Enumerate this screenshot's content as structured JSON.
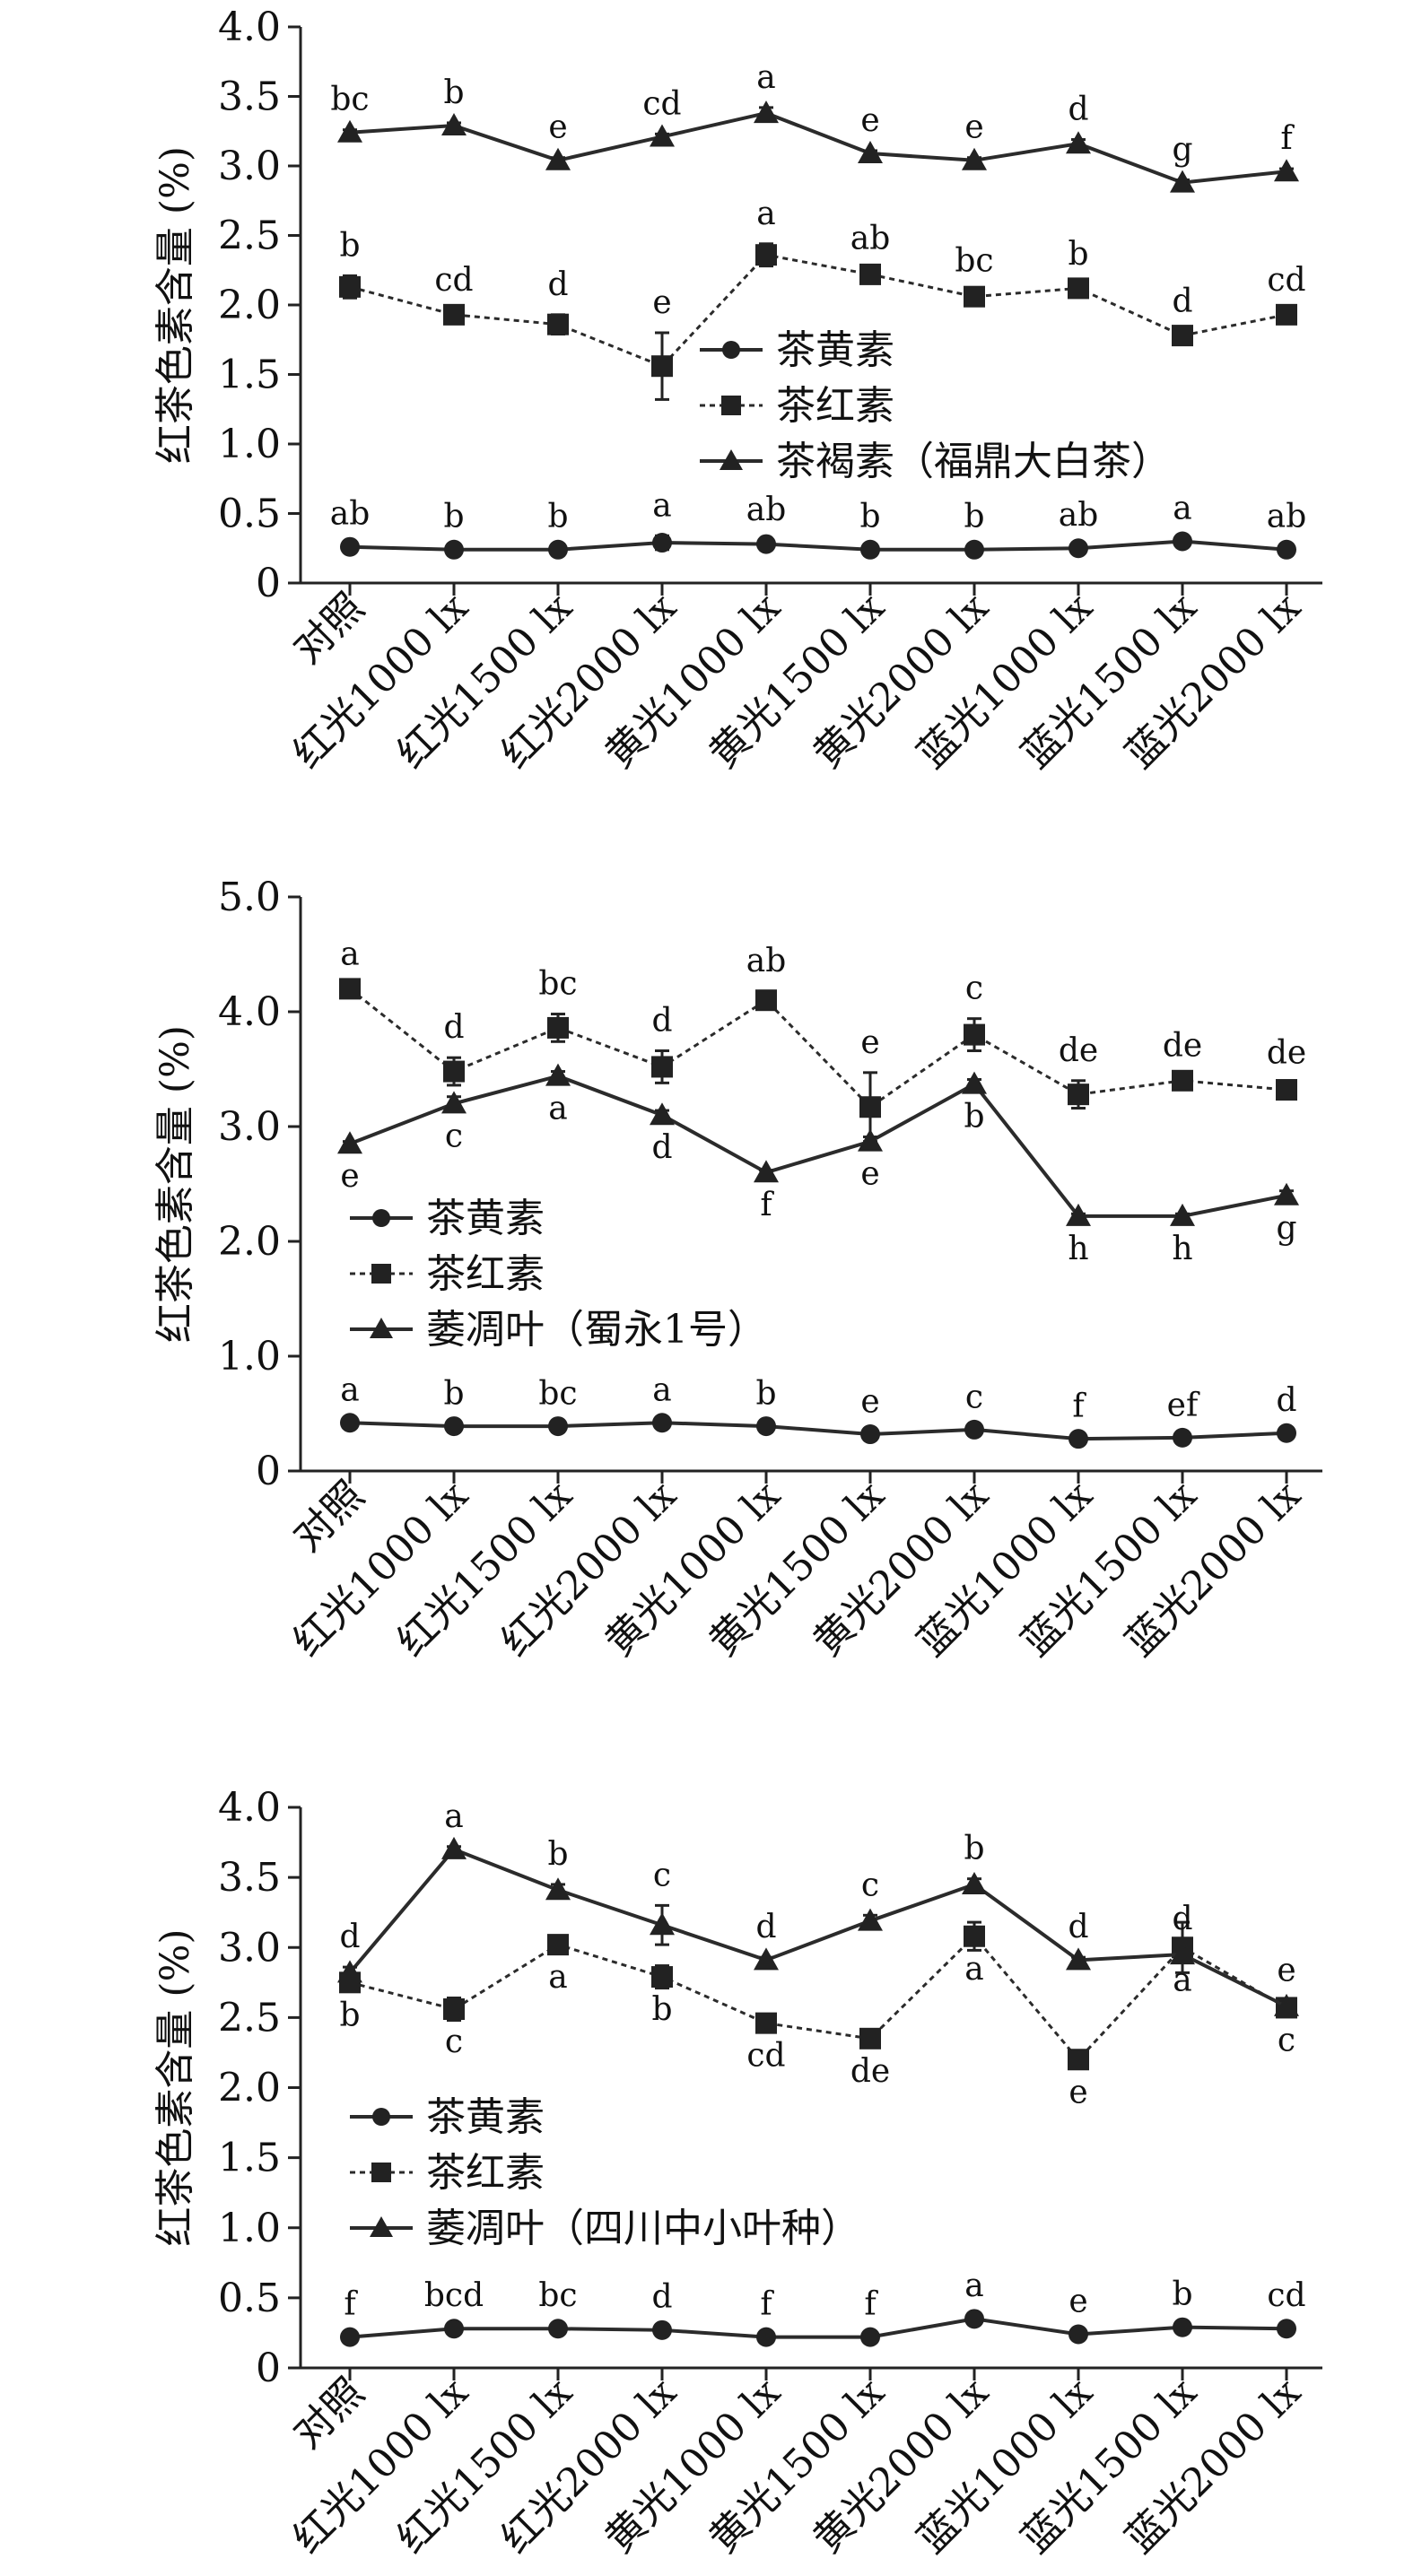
{
  "chart_data": [
    {
      "type": "line",
      "ylabel": "红茶色素含量 (%)",
      "ylim": [
        0,
        4.0
      ],
      "yticks": [
        0,
        0.5,
        1.0,
        1.5,
        2.0,
        2.5,
        3.0,
        3.5,
        4.0
      ],
      "ytick_labels": [
        "0",
        "0.5",
        "1.0",
        "1.5",
        "2.0",
        "2.5",
        "3.0",
        "3.5",
        "4.0"
      ],
      "categories": [
        "对照",
        "红光1000 lx",
        "红光1500 lx",
        "红光2000 lx",
        "黄光1000 lx",
        "黄光1500 lx",
        "黄光2000 lx",
        "蓝光1000 lx",
        "蓝光1500 lx",
        "蓝光2000 lx"
      ],
      "legend": {
        "position": "center-right",
        "entries": [
          "茶黄素",
          "茶红素",
          "茶褐素（福鼎大白茶）"
        ]
      },
      "series": [
        {
          "name": "茶黄素",
          "marker": "circle",
          "line": "solid",
          "values": [
            0.26,
            0.24,
            0.24,
            0.29,
            0.28,
            0.24,
            0.24,
            0.25,
            0.3,
            0.24
          ],
          "errors": [
            0.02,
            0.02,
            0.02,
            0.05,
            0.03,
            0.02,
            0.02,
            0.02,
            0.02,
            0.02
          ],
          "labels": [
            "ab",
            "b",
            "b",
            "a",
            "ab",
            "b",
            "b",
            "ab",
            "a",
            "ab"
          ],
          "label_pos": [
            "above",
            "above",
            "above",
            "above",
            "above",
            "above",
            "above",
            "above",
            "above",
            "above"
          ]
        },
        {
          "name": "茶红素",
          "marker": "square",
          "line": "dashed",
          "values": [
            2.13,
            1.93,
            1.86,
            1.56,
            2.36,
            2.22,
            2.06,
            2.12,
            1.78,
            1.93
          ],
          "errors": [
            0.08,
            0.03,
            0.07,
            0.24,
            0.08,
            0.04,
            0.04,
            0.03,
            0.03,
            0.03
          ],
          "labels": [
            "b",
            "cd",
            "d",
            "e",
            "a",
            "ab",
            "bc",
            "b",
            "d",
            "cd"
          ],
          "label_pos": [
            "above",
            "above",
            "above",
            "above",
            "above",
            "above",
            "above",
            "above",
            "above",
            "above"
          ]
        },
        {
          "name": "茶褐素（福鼎大白茶）",
          "marker": "triangle",
          "line": "solid",
          "values": [
            3.24,
            3.29,
            3.04,
            3.21,
            3.38,
            3.09,
            3.04,
            3.16,
            2.88,
            2.96
          ],
          "errors": [
            0.02,
            0.02,
            0.02,
            0.02,
            0.04,
            0.02,
            0.02,
            0.03,
            0.02,
            0.02
          ],
          "labels": [
            "bc",
            "b",
            "e",
            "cd",
            "a",
            "e",
            "e",
            "d",
            "g",
            "f"
          ],
          "label_pos": [
            "above",
            "above",
            "above",
            "above",
            "above",
            "above",
            "above",
            "above",
            "above",
            "above"
          ]
        }
      ]
    },
    {
      "type": "line",
      "ylabel": "红茶色素含量 (%)",
      "ylim": [
        0,
        5.0
      ],
      "yticks": [
        0,
        1.0,
        2.0,
        3.0,
        4.0,
        5.0
      ],
      "ytick_labels": [
        "0",
        "1.0",
        "2.0",
        "3.0",
        "4.0",
        "5.0"
      ],
      "categories": [
        "对照",
        "红光1000 lx",
        "红光1500 lx",
        "红光2000 lx",
        "黄光1000 lx",
        "黄光1500 lx",
        "黄光2000 lx",
        "蓝光1000 lx",
        "蓝光1500 lx",
        "蓝光2000 lx"
      ],
      "legend": {
        "position": "lower-left",
        "entries": [
          "茶黄素",
          "茶红素",
          "萎凋叶（蜀永1号）"
        ]
      },
      "series": [
        {
          "name": "茶黄素",
          "marker": "circle",
          "line": "solid",
          "values": [
            0.42,
            0.39,
            0.39,
            0.42,
            0.39,
            0.32,
            0.36,
            0.28,
            0.29,
            0.33
          ],
          "errors": [
            0.02,
            0.02,
            0.02,
            0.02,
            0.02,
            0.02,
            0.02,
            0.02,
            0.02,
            0.02
          ],
          "labels": [
            "a",
            "b",
            "bc",
            "a",
            "b",
            "e",
            "c",
            "f",
            "ef",
            "d"
          ],
          "label_pos": [
            "above",
            "above",
            "above",
            "above",
            "above",
            "above",
            "above",
            "above",
            "above",
            "above"
          ]
        },
        {
          "name": "茶红素",
          "marker": "square",
          "line": "dashed",
          "values": [
            4.2,
            3.48,
            3.86,
            3.52,
            4.1,
            3.17,
            3.8,
            3.28,
            3.4,
            3.32
          ],
          "errors": [
            0.04,
            0.12,
            0.12,
            0.14,
            0.08,
            0.3,
            0.14,
            0.12,
            0.04,
            0.06
          ],
          "labels": [
            "a",
            "d",
            "bc",
            "d",
            "ab",
            "e",
            "c",
            "de",
            "de",
            "de"
          ],
          "label_pos": [
            "above",
            "above",
            "above",
            "above",
            "above",
            "above",
            "above",
            "above",
            "above",
            "above"
          ]
        },
        {
          "name": "萎凋叶（蜀永1号）",
          "marker": "triangle",
          "line": "solid",
          "values": [
            2.85,
            3.2,
            3.44,
            3.1,
            2.6,
            2.87,
            3.37,
            2.22,
            2.22,
            2.4
          ],
          "errors": [
            0.02,
            0.06,
            0.04,
            0.04,
            0.02,
            0.04,
            0.04,
            0.02,
            0.02,
            0.04
          ],
          "labels": [
            "e",
            "c",
            "a",
            "d",
            "f",
            "e",
            "b",
            "h",
            "h",
            "g"
          ],
          "label_pos": [
            "below",
            "below",
            "below",
            "below",
            "below",
            "below",
            "below",
            "below",
            "below",
            "below"
          ]
        }
      ]
    },
    {
      "type": "line",
      "ylabel": "红茶色素含量 (%)",
      "ylim": [
        0,
        4.0
      ],
      "yticks": [
        0,
        0.5,
        1.0,
        1.5,
        2.0,
        2.5,
        3.0,
        3.5,
        4.0
      ],
      "ytick_labels": [
        "0",
        "0.5",
        "1.0",
        "1.5",
        "2.0",
        "2.5",
        "3.0",
        "3.5",
        "4.0"
      ],
      "categories": [
        "对照",
        "红光1000 lx",
        "红光1500 lx",
        "红光2000 lx",
        "黄光1000 lx",
        "黄光1500 lx",
        "黄光2000 lx",
        "蓝光1000 lx",
        "蓝光1500 lx",
        "蓝光2000 lx"
      ],
      "legend": {
        "position": "center-left",
        "entries": [
          "茶黄素",
          "茶红素",
          "萎凋叶（四川中小叶种）"
        ]
      },
      "series": [
        {
          "name": "茶黄素",
          "marker": "circle",
          "line": "solid",
          "values": [
            0.22,
            0.28,
            0.28,
            0.27,
            0.22,
            0.22,
            0.35,
            0.24,
            0.29,
            0.28
          ],
          "errors": [
            0.02,
            0.02,
            0.02,
            0.02,
            0.02,
            0.02,
            0.02,
            0.02,
            0.02,
            0.02
          ],
          "labels": [
            "f",
            "bcd",
            "bc",
            "d",
            "f",
            "f",
            "a",
            "e",
            "b",
            "cd"
          ],
          "label_pos": [
            "above",
            "above",
            "above",
            "above",
            "above",
            "above",
            "above",
            "above",
            "above",
            "above"
          ]
        },
        {
          "name": "茶红素",
          "marker": "square",
          "line": "dashed",
          "values": [
            2.75,
            2.56,
            3.02,
            2.79,
            2.46,
            2.35,
            3.08,
            2.2,
            3.0,
            2.57
          ],
          "errors": [
            0.04,
            0.08,
            0.04,
            0.08,
            0.04,
            0.06,
            0.1,
            0.04,
            0.18,
            0.04
          ],
          "labels": [
            "b",
            "c",
            "a",
            "b",
            "cd",
            "de",
            "a",
            "e",
            "a",
            "c"
          ],
          "label_pos": [
            "below",
            "below",
            "below",
            "below",
            "below",
            "below",
            "below",
            "below",
            "below",
            "below"
          ]
        },
        {
          "name": "萎凋叶（四川中小叶种）",
          "marker": "triangle",
          "line": "solid",
          "values": [
            2.82,
            3.7,
            3.41,
            3.16,
            2.91,
            3.19,
            3.45,
            2.91,
            2.95,
            2.58
          ],
          "errors": [
            0.04,
            0.02,
            0.04,
            0.14,
            0.02,
            0.04,
            0.04,
            0.02,
            0.04,
            0.04
          ],
          "labels": [
            "d",
            "a",
            "b",
            "c",
            "d",
            "c",
            "b",
            "d",
            "d",
            "e"
          ],
          "label_pos": [
            "above",
            "above",
            "above",
            "above",
            "above",
            "above",
            "above",
            "above",
            "above",
            "above"
          ]
        }
      ]
    }
  ]
}
